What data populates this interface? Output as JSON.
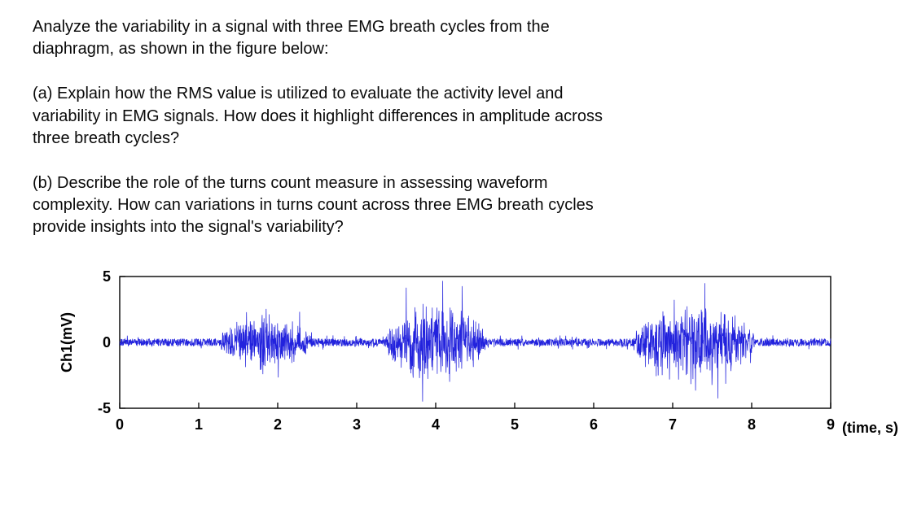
{
  "question": {
    "intro": "Analyze the variability in a signal with three EMG breath cycles from the\ndiaphragm, as shown in the figure below:",
    "part_a": "(a) Explain how the RMS value is utilized to evaluate the activity level and\nvariability in EMG signals. How does it highlight differences in amplitude across\nthree breath cycles?",
    "part_b": "(b) Describe the role of the turns count measure in assessing waveform\ncomplexity. How can variations in turns count across three EMG breath cycles\nprovide insights into the signal's variability?"
  },
  "chart_data": {
    "type": "line",
    "title": "",
    "description": "EMG signal from the diaphragm showing three breath-cycle activity bursts over a low-amplitude noisy baseline",
    "ylabel": "Ch1(mV)",
    "xlabel": "(time, s)",
    "xlim": [
      0,
      9
    ],
    "ylim": [
      -5,
      5
    ],
    "x_ticks": [
      0,
      1,
      2,
      3,
      4,
      5,
      6,
      7,
      8,
      9
    ],
    "y_ticks": [
      5,
      0,
      -5
    ],
    "grid": false,
    "legend": "none",
    "line_color": "#2222dd",
    "axis_color": "#000000",
    "baseline_noise_mV": 0.4,
    "bursts": [
      {
        "start": 1.25,
        "end": 2.45,
        "peak_mV": 3.2
      },
      {
        "start": 3.35,
        "end": 4.65,
        "peak_mV": 4.6
      },
      {
        "start": 6.45,
        "end": 8.05,
        "peak_mV": 4.7
      }
    ]
  }
}
